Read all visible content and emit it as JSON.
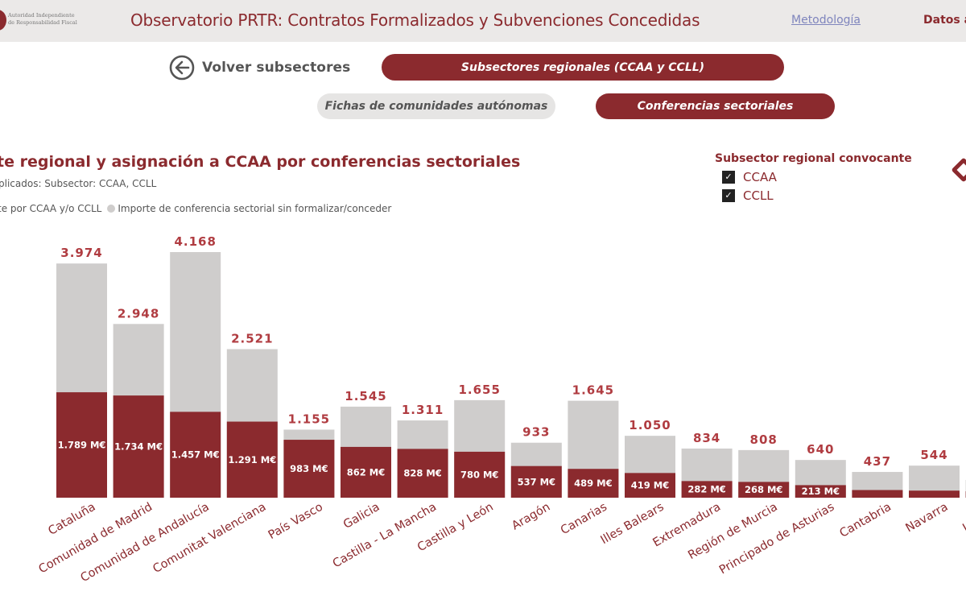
{
  "header": {
    "logo_text_line1": "Autoridad Independiente",
    "logo_text_line2": "de Responsabilidad Fiscal",
    "title": "Observatorio PRTR: Contratos Formalizados y Subvenciones Concedidas",
    "metodologia_link": "Metodología",
    "datos_label": "Datos a"
  },
  "nav": {
    "back_label": "Volver subsectores",
    "subsectores_regionales": "Subsectores regionales (CCAA y CCLL)",
    "fichas_ccaa": "Fichas de comunidades autónomas",
    "conferencias_sectoriales": "Conferencias sectoriales"
  },
  "visual": {
    "title": "te regional y asignación a CCAA por conferencias sectoriales",
    "filters": "plicados: Subsector: CCAA, CCLL",
    "legend_series1": "te por CCAA y/o CCLL",
    "legend_series2": "Importe de conferencia sectorial sin formalizar/conceder"
  },
  "slicer": {
    "title": "Subsector regional convocante",
    "options": [
      {
        "label": "CCAA",
        "checked": true
      },
      {
        "label": "CCLL",
        "checked": true
      }
    ]
  },
  "colors": {
    "brand": "#8b2a2e",
    "unassigned": "#cfcdcc",
    "total_label": "#b03c41"
  },
  "chart_data": {
    "type": "bar",
    "stacked": true,
    "title": "…te regional y asignación a CCAA por conferencias sectoriales",
    "xlabel": "",
    "ylabel": "",
    "unit": "M€",
    "categories": [
      "Cataluña",
      "Comunidad de Madrid",
      "Comunidad de Andalucía",
      "Comunitat Valenciana",
      "País Vasco",
      "Galicia",
      "Castilla - La Mancha",
      "Castilla y León",
      "Aragón",
      "Canarias",
      "Illes Balears",
      "Extremadura",
      "Región de Murcia",
      "Principado de Asturias",
      "Cantabria",
      "Navarra",
      "La Rioja"
    ],
    "totals": [
      3974,
      2948,
      4168,
      2521,
      1155,
      1545,
      1311,
      1655,
      933,
      1645,
      1050,
      834,
      808,
      640,
      437,
      544,
      null
    ],
    "total_labels": [
      "3.974",
      "2.948",
      "4.168",
      "2.521",
      "1.155",
      "1.545",
      "1.311",
      "1.655",
      "933",
      "1.645",
      "1.050",
      "834",
      "808",
      "640",
      "437",
      "544",
      ""
    ],
    "series": [
      {
        "name": "Importe por CCAA y/o CCLL",
        "color": "#8b2a2e",
        "values": [
          1789,
          1734,
          1457,
          1291,
          983,
          862,
          828,
          780,
          537,
          489,
          419,
          282,
          268,
          213,
          130,
          120,
          null
        ],
        "labels": [
          "1.789 M€",
          "1.734 M€",
          "1.457 M€",
          "1.291 M€",
          "983 M€",
          "862 M€",
          "828 M€",
          "780 M€",
          "537 M€",
          "489 M€",
          "419 M€",
          "282 M€",
          "268 M€",
          "213 M€",
          "",
          "",
          ""
        ]
      },
      {
        "name": "Importe de conferencia sectorial sin formalizar/conceder",
        "color": "#cfcdcc",
        "values": [
          2185,
          1214,
          2711,
          1230,
          172,
          683,
          483,
          875,
          396,
          1156,
          631,
          552,
          540,
          427,
          307,
          424,
          null
        ]
      }
    ],
    "ylim": [
      0,
      4168
    ],
    "grid": false,
    "legend_position": "top-left"
  }
}
